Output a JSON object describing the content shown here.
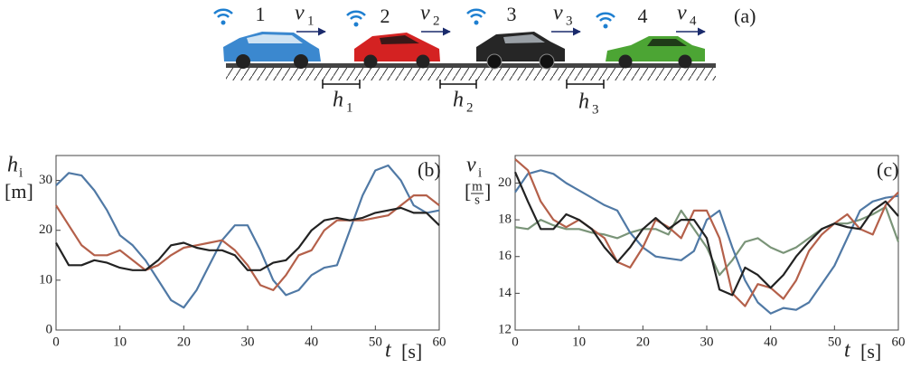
{
  "diagram": {
    "label": "(a)",
    "vehicles": [
      {
        "number": "1",
        "velocity": {
          "symbol": "v",
          "subscript": "1"
        }
      },
      {
        "number": "2",
        "velocity": {
          "symbol": "v",
          "subscript": "2"
        }
      },
      {
        "number": "3",
        "velocity": {
          "symbol": "v",
          "subscript": "3"
        }
      },
      {
        "number": "4",
        "velocity": {
          "symbol": "v",
          "subscript": "4"
        }
      }
    ],
    "headways": [
      {
        "symbol": "h",
        "subscript": "1"
      },
      {
        "symbol": "h",
        "subscript": "2"
      },
      {
        "symbol": "h",
        "subscript": "3"
      }
    ]
  },
  "chart_data": [
    {
      "type": "line",
      "panel_label": "(b)",
      "ylabel": {
        "symbol": "h",
        "subscript": "i",
        "unit": "[m]"
      },
      "xlabel": {
        "symbol": "t",
        "unit": "[s]"
      },
      "x": [
        0,
        2,
        4,
        6,
        8,
        10,
        12,
        14,
        16,
        18,
        20,
        22,
        24,
        26,
        28,
        30,
        32,
        34,
        36,
        38,
        40,
        42,
        44,
        46,
        48,
        50,
        52,
        54,
        56,
        58,
        60
      ],
      "xlim": [
        0,
        60
      ],
      "xticks": [
        0,
        10,
        20,
        30,
        40,
        50,
        60
      ],
      "ylim": [
        0,
        35
      ],
      "yticks": [
        0,
        10,
        20,
        30
      ],
      "series": [
        {
          "color": "#5079a5",
          "values": [
            29,
            31.5,
            31,
            28,
            24,
            19,
            17,
            14,
            10,
            6,
            4.5,
            8,
            13,
            18,
            21,
            21,
            16,
            10,
            7,
            8,
            11,
            12.5,
            13,
            20,
            27,
            32,
            33,
            30,
            25,
            23.5,
            24
          ]
        },
        {
          "color": "#b4604a",
          "values": [
            25,
            21,
            17,
            15,
            15,
            16,
            14,
            12,
            13,
            15,
            16.5,
            17,
            17.5,
            18,
            16,
            13,
            9,
            8,
            11,
            15,
            16,
            20,
            22,
            22,
            22,
            22.5,
            23,
            25,
            27,
            27,
            25
          ]
        },
        {
          "color": "#222222",
          "values": [
            17.5,
            13,
            13,
            14,
            13.5,
            12.5,
            12,
            12,
            14,
            17,
            17.5,
            16.5,
            16,
            16,
            15,
            12,
            12,
            13.5,
            14,
            16.5,
            20,
            22,
            22.5,
            22,
            22.5,
            23.5,
            24,
            24.5,
            23.5,
            23.5,
            21
          ]
        }
      ]
    },
    {
      "type": "line",
      "panel_label": "(c)",
      "ylabel": {
        "symbol": "v",
        "subscript": "i",
        "unit_numerator": "m",
        "unit_denominator": "s"
      },
      "xlabel": {
        "symbol": "t",
        "unit": "[s]"
      },
      "x": [
        0,
        2,
        4,
        6,
        8,
        10,
        12,
        14,
        16,
        18,
        20,
        22,
        24,
        26,
        28,
        30,
        32,
        34,
        36,
        38,
        40,
        42,
        44,
        46,
        48,
        50,
        52,
        54,
        56,
        58,
        60
      ],
      "xlim": [
        0,
        60
      ],
      "xticks": [
        0,
        10,
        20,
        30,
        40,
        50,
        60
      ],
      "ylim": [
        12,
        21.5
      ],
      "yticks": [
        12,
        14,
        16,
        18,
        20
      ],
      "series": [
        {
          "color": "#7a9478",
          "values": [
            17.6,
            17.5,
            18,
            17.7,
            17.5,
            17.5,
            17.3,
            17.2,
            17,
            17.3,
            17.5,
            17.5,
            17.2,
            18.5,
            17.5,
            16.5,
            15,
            15.8,
            16.8,
            17,
            16.5,
            16.2,
            16.5,
            17,
            17.5,
            17.8,
            17.8,
            18,
            18.3,
            18.7,
            16.8
          ]
        },
        {
          "color": "#5079a5",
          "values": [
            19.5,
            20.5,
            20.7,
            20.5,
            20,
            19.6,
            19.2,
            18.8,
            18.5,
            17.3,
            16.5,
            16,
            15.9,
            15.8,
            16.3,
            18,
            18.5,
            16.5,
            14.7,
            13.5,
            12.9,
            13.2,
            13.1,
            13.5,
            14.5,
            15.5,
            17,
            18.5,
            19,
            19.2,
            19.3
          ]
        },
        {
          "color": "#b4604a",
          "values": [
            21.3,
            20.7,
            19,
            18,
            17.6,
            18,
            17.5,
            17,
            15.7,
            15.4,
            16.5,
            18,
            17.6,
            17,
            18.5,
            18.5,
            17,
            14,
            13.3,
            14.5,
            14.3,
            13.7,
            14.7,
            16.3,
            17.2,
            17.8,
            18.3,
            17.5,
            17.2,
            18.8,
            19.5
          ]
        },
        {
          "color": "#222222",
          "values": [
            20.6,
            19,
            17.5,
            17.5,
            18.3,
            18,
            17.5,
            16.5,
            15.7,
            16.5,
            17.5,
            18.1,
            17.5,
            18,
            18,
            17,
            14.2,
            13.9,
            15.4,
            15,
            14.3,
            15,
            16,
            16.8,
            17.5,
            17.8,
            17.6,
            17.5,
            18.5,
            19,
            18.2
          ]
        }
      ]
    }
  ]
}
